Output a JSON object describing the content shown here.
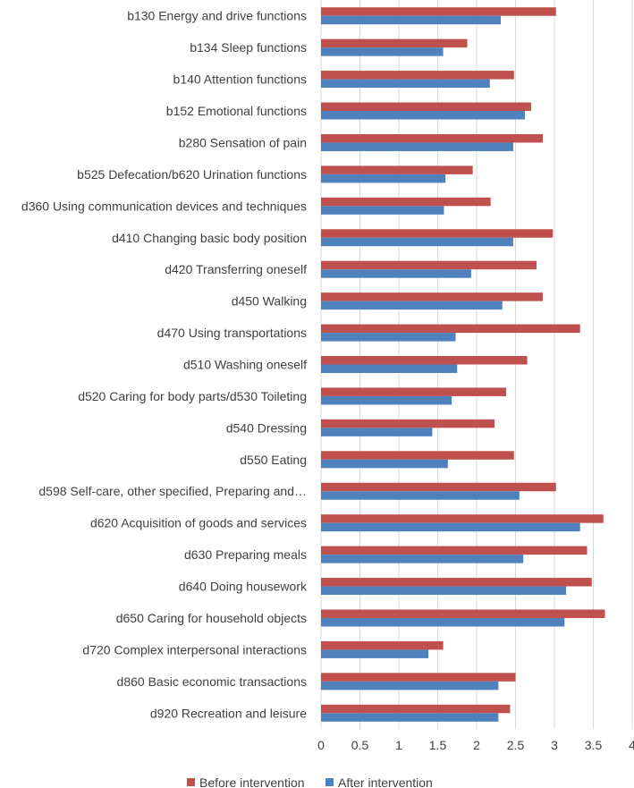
{
  "chart_data": {
    "type": "bar",
    "orientation": "horizontal",
    "title": "",
    "xlabel": "",
    "ylabel": "",
    "xlim": [
      0,
      4
    ],
    "xticks": [
      "0",
      "0.5",
      "1",
      "1.5",
      "2",
      "2.5",
      "3",
      "3.5",
      "4"
    ],
    "grid": true,
    "legend_position": "bottom",
    "categories": [
      "b130 Energy and drive functions",
      "b134 Sleep functions",
      "b140 Attention functions",
      "b152 Emotional functions",
      "b280 Sensation of pain",
      "b525 Defecation/b620 Urination functions",
      "d360 Using communication devices and techniques",
      "d410 Changing basic body position",
      "d420 Transferring oneself",
      "d450 Walking",
      "d470 Using transportations",
      "d510 Washing oneself",
      "d520 Caring for body parts/d530 Toileting",
      "d540 Dressing",
      "d550 Eating",
      "d598 Self-care, other specified, Preparing and…",
      "d620 Acquisition of goods and services",
      "d630 Preparing meals",
      "d640 Doing housework",
      "d650 Caring for household objects",
      "d720 Complex interpersonal interactions",
      "d860 Basic economic transactions",
      "d920 Recreation and leisure"
    ],
    "series": [
      {
        "name": "Before intervention",
        "color": "#c0504d",
        "values": [
          3.02,
          1.88,
          2.48,
          2.7,
          2.85,
          1.95,
          2.18,
          2.98,
          2.77,
          2.85,
          3.33,
          2.65,
          2.38,
          2.23,
          2.48,
          3.02,
          3.63,
          3.42,
          3.48,
          3.65,
          1.57,
          2.5,
          2.43
        ]
      },
      {
        "name": "After intervention",
        "color": "#4f81bd",
        "values": [
          2.31,
          1.57,
          2.17,
          2.62,
          2.47,
          1.6,
          1.58,
          2.47,
          1.93,
          2.33,
          1.73,
          1.75,
          1.68,
          1.43,
          1.63,
          2.55,
          3.33,
          2.6,
          3.15,
          3.13,
          1.38,
          2.28,
          2.28
        ]
      }
    ]
  }
}
